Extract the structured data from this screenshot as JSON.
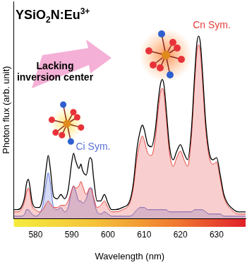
{
  "chart_data": {
    "type": "line",
    "title": "YSiO2N:Eu3+",
    "annotations": [
      "Lacking inversion center"
    ],
    "x_label": "Wavelength (nm)",
    "y_label": "Photon flux (arb. unit)",
    "x": [
      574,
      575,
      576,
      577,
      577.5,
      578,
      578.5,
      579,
      580,
      581,
      582,
      583,
      583.5,
      584,
      585,
      586,
      587,
      588,
      589,
      590,
      590.5,
      591,
      592,
      592.5,
      593,
      594,
      595,
      595.5,
      596,
      597,
      598,
      599,
      600,
      601,
      602,
      604,
      606,
      607,
      608,
      609,
      609.5,
      610,
      611,
      612,
      613,
      614,
      614.5,
      615,
      615.5,
      616,
      617,
      618,
      619,
      620,
      621,
      622,
      623,
      624,
      624.5,
      625,
      625.5,
      626,
      627,
      628,
      629,
      630,
      631,
      632,
      633,
      634,
      636,
      638
    ],
    "series": [
      {
        "color": "#000000",
        "values": [
          4,
          4,
          5,
          10,
          16,
          18,
          14,
          8,
          5,
          5,
          10,
          24,
          29,
          24,
          10,
          9,
          11,
          9,
          13,
          26,
          30,
          27,
          23,
          25,
          22,
          20,
          28,
          27,
          19,
          8,
          8,
          11,
          7,
          4,
          4,
          5,
          8,
          16,
          32,
          41,
          43,
          41,
          34,
          33,
          40,
          56,
          62,
          64,
          61,
          52,
          33,
          27,
          31,
          34,
          30,
          27,
          40,
          68,
          80,
          84,
          81,
          70,
          44,
          30,
          27,
          28,
          20,
          11,
          7,
          5,
          3,
          3
        ]
      },
      {
        "name": "Cn Sym.",
        "color": "#e5413b",
        "values": [
          3,
          3,
          4,
          8,
          12,
          14,
          11,
          6,
          4,
          3,
          4,
          7,
          8,
          7,
          5,
          5,
          6,
          6,
          8,
          13,
          15,
          14,
          15,
          17,
          15,
          11,
          14,
          13,
          10,
          5,
          6,
          8,
          5,
          3,
          3,
          4,
          7,
          14,
          28,
          36,
          38,
          36,
          30,
          29,
          36,
          52,
          58,
          60,
          57,
          48,
          30,
          24,
          28,
          31,
          27,
          24,
          37,
          64,
          76,
          80,
          77,
          66,
          41,
          28,
          25,
          26,
          18,
          10,
          6,
          4,
          2,
          2
        ]
      },
      {
        "name": "Ci Sym.",
        "color": "#5a6fd6",
        "values": [
          1,
          1,
          1,
          2,
          4,
          4,
          3,
          2,
          1,
          2,
          6,
          17,
          21,
          17,
          5,
          4,
          5,
          3,
          5,
          13,
          15,
          13,
          8,
          8,
          7,
          9,
          14,
          14,
          9,
          3,
          2,
          3,
          2,
          1,
          1,
          1,
          1,
          2,
          4,
          5,
          5,
          5,
          4,
          4,
          4,
          4,
          4,
          4,
          4,
          4,
          3,
          3,
          3,
          3,
          3,
          3,
          3,
          4,
          4,
          4,
          4,
          4,
          3,
          2,
          2,
          2,
          2,
          1,
          1,
          1,
          1,
          1
        ]
      }
    ],
    "xlim": [
      574,
      638
    ],
    "xticks": [
      580,
      590,
      600,
      610,
      620,
      630
    ],
    "ylim": [
      0,
      100
    ],
    "tick_labels": "x",
    "grid": false
  }
}
